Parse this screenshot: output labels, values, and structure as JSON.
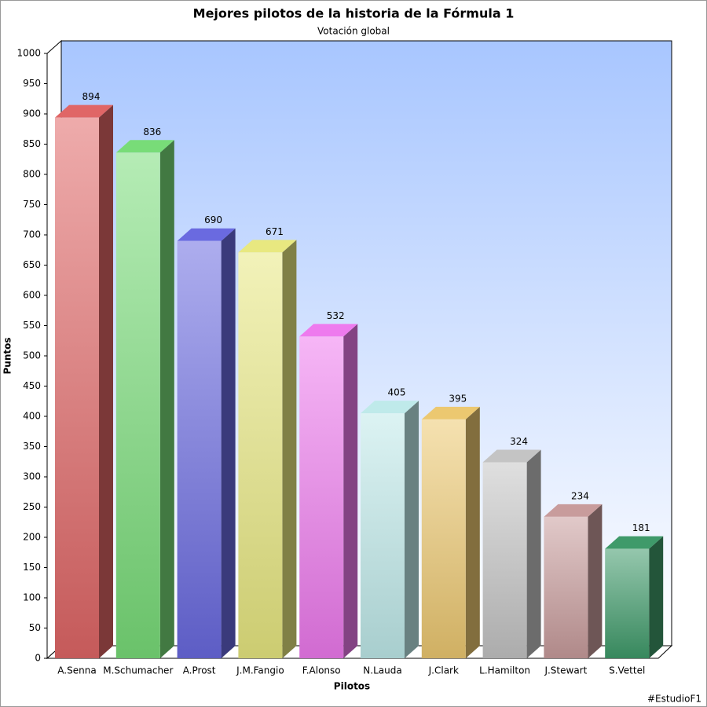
{
  "chart_data": {
    "type": "bar3d",
    "title": "Mejores pilotos de la historia de la Fórmula 1",
    "subtitle": "Votación global",
    "x_label": "Pilotos",
    "y_label": "Puntos",
    "footer": "#EstudioF1",
    "categories": [
      "A.Senna",
      "M.Schumacher",
      "A.Prost",
      "J.M.Fangio",
      "F.Alonso",
      "N.Lauda",
      "J.Clark",
      "L.Hamilton",
      "J.Stewart",
      "S.Vettel"
    ],
    "values": [
      894,
      836,
      690,
      671,
      532,
      405,
      395,
      324,
      234,
      181
    ],
    "colors": [
      "#e06666",
      "#78dc78",
      "#6a6ae0",
      "#e8e880",
      "#ee7aee",
      "#bfeaea",
      "#ecc870",
      "#c4c4c4",
      "#c89c9c",
      "#3f9a6a"
    ],
    "ylim": [
      0,
      1000
    ],
    "yticks": [
      0,
      50,
      100,
      150,
      200,
      250,
      300,
      350,
      400,
      450,
      500,
      550,
      600,
      650,
      700,
      750,
      800,
      850,
      900,
      950,
      1000
    ]
  }
}
